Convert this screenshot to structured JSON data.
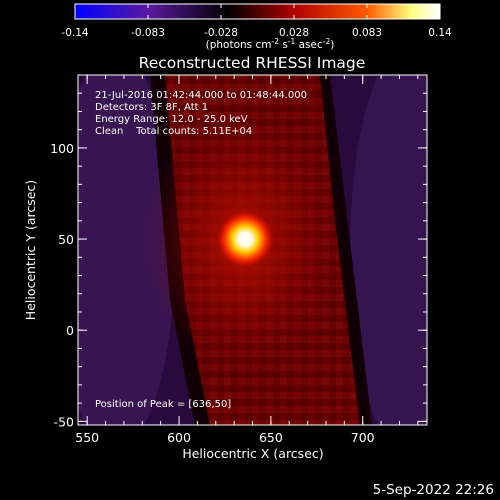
{
  "colorbar": {
    "ticks": [
      "-0.14",
      "-0.083",
      "-0.028",
      "0.028",
      "0.083",
      "0.14"
    ],
    "min": -0.14,
    "max": 0.14,
    "units_line": "(photons cm",
    "units_sup1": "-2",
    "units_mid": " s",
    "units_sup2": "-1",
    "units_tail": " asec",
    "units_sup3": "-2",
    "units_close": ")",
    "colormap": [
      "#0000ff",
      "#5a1aa0",
      "#000000",
      "#b00000",
      "#ff5a00",
      "#ffff80",
      "#ffffff"
    ]
  },
  "chart_data": {
    "type": "heatmap",
    "title": "Reconstructed RHESSI Image",
    "xlabel": "Heliocentric X (arcsec)",
    "ylabel": "Heliocentric Y (arcsec)",
    "xlim": [
      545,
      735
    ],
    "ylim": [
      -52,
      140
    ],
    "xticks": [
      550,
      600,
      650,
      700
    ],
    "yticks": [
      -50,
      0,
      50,
      100
    ],
    "annotations": [
      "21-Jul-2016 01:42:44.000 to 01:48:44.000",
      "Detectors: 3F 8F, Att 1",
      "Energy Range: 12.0 - 25.0 keV",
      "Clean    Total counts: 5.11E+04"
    ],
    "peak_label": "Position of Peak = [636,50]",
    "peak": {
      "x": 636,
      "y": 50
    }
  },
  "footer_date": "5-Sep-2022 22:26"
}
